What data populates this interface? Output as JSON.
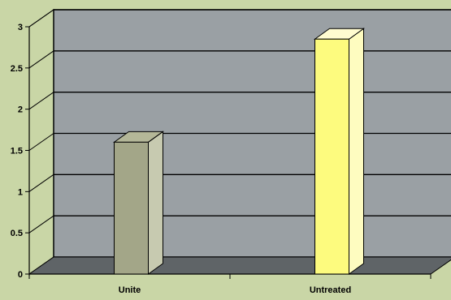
{
  "chart_data": {
    "type": "bar",
    "categories": [
      "Unite",
      "Untreated"
    ],
    "values": [
      1.6,
      2.85
    ],
    "ylim": [
      0,
      3
    ],
    "yticks": [
      "0",
      "0.5",
      "1",
      "1.5",
      "2",
      "2.5",
      "3"
    ],
    "title": "",
    "xlabel": "",
    "ylabel": "",
    "grid": true,
    "legend": "none",
    "style": "3d",
    "colors": {
      "bar_front": [
        "#a3a688",
        "#fdfb7e"
      ],
      "bar_side": [
        "#c7cab0",
        "#fefcc0"
      ],
      "bar_top": [
        "#b4b798",
        "#fffcd0"
      ],
      "plot_back": "#9aa0a4",
      "plot_floor": "#5f6467",
      "page_background": "#c9d6a6"
    }
  }
}
